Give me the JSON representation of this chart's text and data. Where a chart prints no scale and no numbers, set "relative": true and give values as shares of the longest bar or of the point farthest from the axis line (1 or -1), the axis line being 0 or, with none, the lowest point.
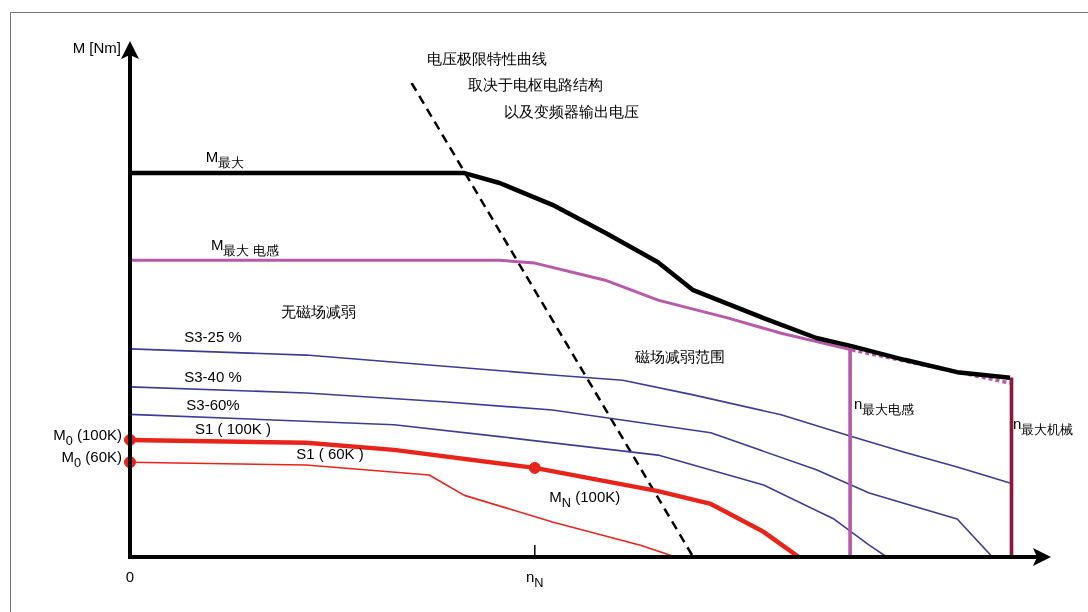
{
  "chart_data": {
    "type": "line",
    "relative": true,
    "ylabel": "M [Nm]",
    "marker": "none",
    "categories": [
      "0",
      null,
      null,
      null,
      null,
      null,
      null,
      null,
      null,
      null,
      null,
      null,
      null,
      null,
      null,
      null,
      null,
      null,
      null,
      null,
      null,
      null,
      null,
      "n$_{N}$",
      null,
      null,
      null,
      null,
      null,
      null,
      null,
      null,
      null,
      null,
      null,
      null,
      null,
      null,
      null,
      null,
      null,
      null,
      null,
      null,
      null,
      null,
      null,
      null,
      null,
      null,
      null
    ],
    "series": [
      {
        "color": "#000000",
        "values": [
          0.81,
          null,
          null,
          null,
          null,
          null,
          null,
          null,
          null,
          null,
          null,
          null,
          null,
          null,
          null,
          null,
          null,
          null,
          null,
          0.81,
          null,
          0.789,
          null,
          null,
          0.743,
          null,
          null,
          0.684,
          null,
          null,
          0.622,
          null,
          0.563,
          null,
          null,
          null,
          0.504,
          null,
          null,
          0.462,
          null,
          0.445,
          null,
          null,
          0.416,
          null,
          null,
          0.39,
          null,
          null,
          0.378
        ]
      },
      {
        "color": "#b85aa8",
        "values": [
          0.626,
          null,
          null,
          null,
          null,
          null,
          null,
          null,
          null,
          null,
          null,
          null,
          null,
          null,
          null,
          null,
          null,
          null,
          null,
          null,
          null,
          0.626,
          null,
          0.62,
          null,
          null,
          null,
          0.584,
          null,
          null,
          0.542,
          null,
          null,
          null,
          0.504,
          null,
          null,
          0.472,
          null,
          null,
          null,
          0.437,
          null,
          null,
          null,
          null,
          null,
          null,
          null,
          null,
          null
        ]
      },
      {
        "color": "#b85aa8",
        "line_style": "dotted",
        "values": [
          null,
          null,
          null,
          null,
          null,
          null,
          null,
          null,
          null,
          null,
          null,
          null,
          null,
          null,
          null,
          null,
          null,
          null,
          null,
          null,
          null,
          null,
          null,
          null,
          null,
          null,
          null,
          null,
          null,
          null,
          null,
          null,
          null,
          null,
          null,
          null,
          null,
          null,
          null,
          null,
          null,
          0.437,
          null,
          null,
          null,
          null,
          null,
          null,
          null,
          null,
          0.367
        ]
      },
      {
        "type": "bar",
        "color": "#b85aa8",
        "values": [
          null,
          null,
          null,
          null,
          null,
          null,
          null,
          null,
          null,
          null,
          null,
          null,
          null,
          null,
          null,
          null,
          null,
          null,
          null,
          null,
          null,
          null,
          null,
          null,
          null,
          null,
          null,
          null,
          null,
          null,
          null,
          null,
          null,
          null,
          null,
          null,
          null,
          null,
          null,
          null,
          null,
          0.445,
          null,
          null,
          null,
          null,
          null,
          null,
          null,
          null,
          null
        ]
      },
      {
        "type": "bar",
        "color": "#8b1a3a",
        "values": [
          null,
          null,
          null,
          null,
          null,
          null,
          null,
          null,
          null,
          null,
          null,
          null,
          null,
          null,
          null,
          null,
          null,
          null,
          null,
          null,
          null,
          null,
          null,
          null,
          null,
          null,
          null,
          null,
          null,
          null,
          null,
          null,
          null,
          null,
          null,
          null,
          null,
          null,
          null,
          null,
          null,
          null,
          null,
          null,
          null,
          null,
          null,
          null,
          null,
          null,
          0.378
        ]
      },
      {
        "color": "#3c3c96",
        "values": [
          0.439,
          null,
          null,
          null,
          null,
          null,
          null,
          null,
          null,
          null,
          0.426,
          null,
          null,
          null,
          null,
          null,
          null,
          0.405,
          null,
          null,
          null,
          null,
          null,
          null,
          0.384,
          null,
          null,
          null,
          0.373,
          null,
          null,
          null,
          0.342,
          null,
          null,
          null,
          null,
          0.3,
          null,
          null,
          null,
          0.254,
          null,
          null,
          0.221,
          null,
          null,
          0.19,
          null,
          null,
          0.156
        ]
      },
      {
        "color": "#3c3c96",
        "values": [
          0.359,
          null,
          null,
          null,
          null,
          null,
          null,
          null,
          null,
          null,
          0.346,
          null,
          null,
          null,
          null,
          null,
          null,
          null,
          0.327,
          null,
          null,
          null,
          null,
          null,
          0.31,
          null,
          null,
          null,
          null,
          null,
          null,
          null,
          null,
          0.262,
          null,
          null,
          null,
          null,
          null,
          0.184,
          null,
          null,
          0.135,
          null,
          null,
          null,
          null,
          0.08,
          0.04,
          0,
          null
        ]
      },
      {
        "color": "#3c3c96",
        "values": [
          0.301,
          null,
          null,
          null,
          null,
          null,
          null,
          null,
          null,
          null,
          null,
          null,
          null,
          null,
          null,
          0.279,
          null,
          null,
          null,
          null,
          null,
          0.254,
          null,
          null,
          null,
          null,
          null,
          null,
          null,
          null,
          0.215,
          null,
          null,
          null,
          null,
          null,
          0.152,
          null,
          null,
          null,
          0.08,
          null,
          0.025,
          0,
          null,
          null,
          null,
          null,
          null,
          null,
          null
        ]
      },
      {
        "color": "#e8231a",
        "values": [
          0.247,
          null,
          null,
          null,
          null,
          null,
          null,
          null,
          null,
          null,
          0.241,
          null,
          null,
          null,
          null,
          0.226,
          null,
          null,
          null,
          null,
          null,
          null,
          null,
          0.188,
          null,
          null,
          null,
          null,
          null,
          null,
          0.139,
          null,
          null,
          0.112,
          null,
          null,
          0.053,
          null,
          0,
          null,
          null,
          null,
          null,
          null,
          null,
          null,
          null,
          null,
          null,
          null,
          null
        ]
      },
      {
        "color": "#e8231a",
        "values": [
          0.2,
          null,
          null,
          null,
          null,
          null,
          null,
          null,
          null,
          null,
          0.194,
          null,
          null,
          null,
          null,
          null,
          null,
          0.173,
          null,
          0.13,
          null,
          null,
          null,
          null,
          0.074,
          null,
          null,
          null,
          null,
          0.025,
          null,
          0,
          null,
          null,
          null,
          null,
          null,
          null,
          null,
          null,
          null,
          null,
          null,
          null,
          null,
          null,
          null,
          null,
          null,
          null,
          null
        ]
      },
      {
        "color": "#000000",
        "line_style": "dashed",
        "values": [
          null,
          null,
          null,
          null,
          null,
          null,
          null,
          null,
          null,
          null,
          null,
          null,
          null,
          null,
          null,
          null,
          1,
          null,
          null,
          null,
          null,
          null,
          null,
          null,
          null,
          null,
          null,
          null,
          null,
          null,
          null,
          null,
          0,
          null,
          null,
          null,
          null,
          null,
          null,
          null,
          null,
          null,
          null,
          null,
          null,
          null,
          null,
          null,
          null,
          null,
          null
        ]
      },
      {
        "type": "scatter",
        "marker": "circle",
        "color": "#e8231a",
        "values": [
          0.247,
          null,
          null,
          null,
          null,
          null,
          null,
          null,
          null,
          null,
          null,
          null,
          null,
          null,
          null,
          null,
          null,
          null,
          null,
          null,
          null,
          null,
          null,
          0.188,
          null,
          null,
          null,
          null,
          null,
          null,
          null,
          null,
          null,
          null,
          null,
          null,
          null,
          null,
          null,
          null,
          null,
          null,
          null,
          null,
          null,
          null,
          null,
          null,
          null,
          null,
          null
        ]
      },
      {
        "type": "scatter",
        "marker": "circle",
        "color": "#e8231a",
        "values": [
          0.2,
          null,
          null,
          null,
          null,
          null,
          null,
          null,
          null,
          null,
          null,
          null,
          null,
          null,
          null,
          null,
          null,
          null,
          null,
          null,
          null,
          null,
          null,
          null,
          null,
          null,
          null,
          null,
          null,
          null,
          null,
          null,
          null,
          null,
          null,
          null,
          null,
          null,
          null,
          null,
          null,
          null,
          null,
          null,
          null,
          null,
          null,
          null,
          null,
          null,
          null
        ]
      }
    ],
    "annotations": [
      "电压极限特性曲线",
      "取决于电枢电路结构",
      "以及变频器输出电压",
      "M$_{最大}$",
      "M$_{最大 电感}$",
      "无磁场减弱",
      "磁场减弱范围",
      "S3-25 %",
      "S3-40 %",
      "S3-60%",
      "S1 ( 100K )",
      "S1 ( 60K )",
      "n$_{最大电感}$",
      "n$_{最大机械}$",
      {
        "text": "M$_{0}$ (100K)",
        "x": "0",
        "y": 0.247
      },
      {
        "text": "M$_{0}$ (60K)",
        "x": "0",
        "y": 0.2
      },
      {
        "text": "M$_{N}$ (100K)",
        "x": "n$_{N}$",
        "y": 0.188
      }
    ]
  }
}
